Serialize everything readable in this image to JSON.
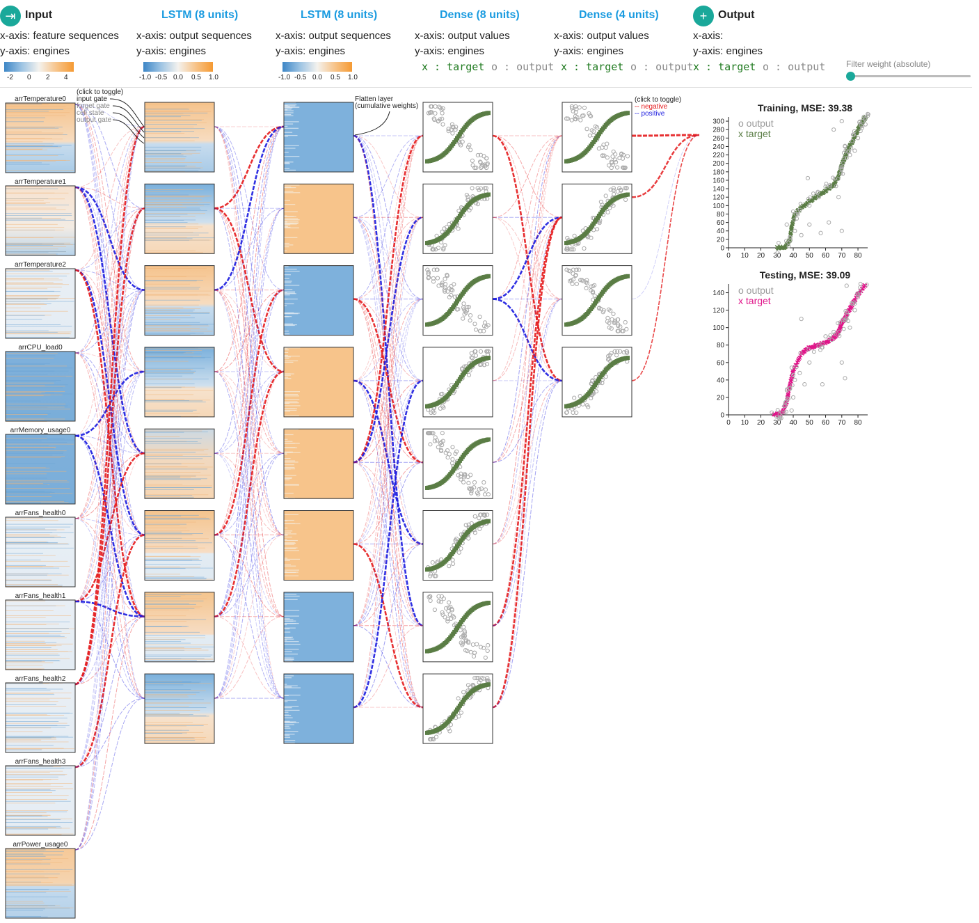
{
  "columns": [
    {
      "title": "Input",
      "icon": "input-icon",
      "btn": "teal",
      "x": "x-axis: feature sequences",
      "y": "y-axis: engines",
      "titleColor": "dark"
    },
    {
      "title": "LSTM (8 units)",
      "icon": "trash-icon",
      "btn": "grey",
      "x": "x-axis: output sequences",
      "y": "y-axis: engines",
      "titleColor": "blue"
    },
    {
      "title": "LSTM (8 units)",
      "icon": "trash-icon",
      "btn": "grey",
      "x": "x-axis: output sequences",
      "y": "y-axis: engines",
      "titleColor": "blue"
    },
    {
      "title": "Dense (8 units)",
      "icon": "trash-icon",
      "btn": "grey",
      "x": "x-axis: output values",
      "y": "y-axis: engines",
      "titleColor": "blue"
    },
    {
      "title": "Dense (4 units)",
      "icon": "trash-icon",
      "btn": "grey",
      "x": "x-axis: output values",
      "y": "y-axis: engines",
      "titleColor": "blue"
    },
    {
      "title": "Output",
      "icon": "plus-icon",
      "btn": "teal",
      "x": "x-axis:",
      "y": "y-axis: engines",
      "titleColor": "dark"
    }
  ],
  "legend_input_ticks": [
    "-2",
    "0",
    "2",
    "4"
  ],
  "legend_lstm_ticks": [
    "-1.0",
    "-0.5",
    "0.0",
    "0.5",
    "1.0"
  ],
  "xo_target": "x : target",
  "xo_output": "o : output",
  "filter_label": "Filter weight (absolute)",
  "filter_value": 0.0,
  "input_features": [
    "arrTemperature0",
    "arrTemperature1",
    "arrTemperature2",
    "arrCPU_load0",
    "arrMemory_usage0",
    "arrFans_health0",
    "arrFans_health1",
    "arrFans_health2",
    "arrFans_health3",
    "arrPower_usage0"
  ],
  "gate_legend": {
    "toggle": "(click to toggle)",
    "items": [
      "input gate",
      "forget gate",
      "cell state",
      "output gate"
    ]
  },
  "flatten_note": [
    "Flatten layer",
    "(cumulative weights)"
  ],
  "weight_legend": {
    "toggle": "(click to toggle)",
    "negative": "-- negative",
    "positive": "-- positive"
  },
  "colors": {
    "negative": "#e41a1c",
    "positive": "#1a1adf",
    "target_train": "#5a7d45",
    "target_test": "#e0168a",
    "output": "#aaaaaa"
  },
  "chart_data": [
    {
      "type": "scatter",
      "title": "Training, MSE: 39.38",
      "legend": [
        {
          "symbol": "o",
          "label": "output"
        },
        {
          "symbol": "x",
          "label": "target"
        }
      ],
      "xticks": [
        "0",
        "10",
        "20",
        "30",
        "40",
        "50",
        "60",
        "70",
        "80"
      ],
      "yticks": [
        "0",
        "20",
        "40",
        "60",
        "80",
        "100",
        "120",
        "140",
        "160",
        "180",
        "200",
        "220",
        "240",
        "260",
        "280",
        "300"
      ],
      "xlim": [
        0,
        86
      ],
      "ylim": [
        0,
        310
      ],
      "target_curve": [
        [
          30,
          0
        ],
        [
          35,
          2
        ],
        [
          38,
          20
        ],
        [
          39,
          50
        ],
        [
          41,
          80
        ],
        [
          45,
          95
        ],
        [
          50,
          110
        ],
        [
          55,
          122
        ],
        [
          60,
          135
        ],
        [
          65,
          150
        ],
        [
          68,
          170
        ],
        [
          70,
          195
        ],
        [
          72,
          215
        ],
        [
          74,
          235
        ],
        [
          77,
          255
        ],
        [
          80,
          280
        ],
        [
          83,
          300
        ],
        [
          85,
          310
        ]
      ],
      "outputs": [
        [
          38,
          25
        ],
        [
          41,
          40
        ],
        [
          45,
          30
        ],
        [
          50,
          55
        ],
        [
          57,
          35
        ],
        [
          62,
          60
        ],
        [
          68,
          120
        ],
        [
          70,
          40
        ],
        [
          75,
          220
        ],
        [
          78,
          230
        ],
        [
          80,
          260
        ],
        [
          49,
          165
        ],
        [
          65,
          280
        ],
        [
          70,
          300
        ],
        [
          50,
          100
        ],
        [
          55,
          130
        ],
        [
          60,
          145
        ],
        [
          72,
          240
        ],
        [
          82,
          290
        ],
        [
          36,
          55
        ]
      ]
    },
    {
      "type": "scatter",
      "title": "Testing, MSE: 39.09",
      "legend": [
        {
          "symbol": "o",
          "label": "output"
        },
        {
          "symbol": "x",
          "label": "target"
        }
      ],
      "xticks": [
        "0",
        "10",
        "20",
        "30",
        "40",
        "50",
        "60",
        "70",
        "80"
      ],
      "yticks": [
        "0",
        "20",
        "40",
        "60",
        "80",
        "100",
        "120",
        "140"
      ],
      "xlim": [
        0,
        86
      ],
      "ylim": [
        0,
        150
      ],
      "target_curve": [
        [
          28,
          0
        ],
        [
          33,
          2
        ],
        [
          36,
          15
        ],
        [
          38,
          35
        ],
        [
          40,
          50
        ],
        [
          45,
          70
        ],
        [
          50,
          77
        ],
        [
          55,
          80
        ],
        [
          60,
          83
        ],
        [
          65,
          88
        ],
        [
          68,
          95
        ],
        [
          70,
          105
        ],
        [
          73,
          115
        ],
        [
          76,
          125
        ],
        [
          80,
          138
        ],
        [
          85,
          150
        ]
      ],
      "outputs": [
        [
          39,
          5
        ],
        [
          40,
          20
        ],
        [
          41,
          40
        ],
        [
          42,
          55
        ],
        [
          47,
          35
        ],
        [
          50,
          60
        ],
        [
          45,
          110
        ],
        [
          60,
          90
        ],
        [
          58,
          35
        ],
        [
          70,
          60
        ],
        [
          72,
          42
        ],
        [
          73,
          148
        ],
        [
          75,
          100
        ],
        [
          78,
          120
        ],
        [
          80,
          135
        ],
        [
          65,
          95
        ],
        [
          38,
          30
        ],
        [
          44,
          48
        ]
      ]
    }
  ]
}
